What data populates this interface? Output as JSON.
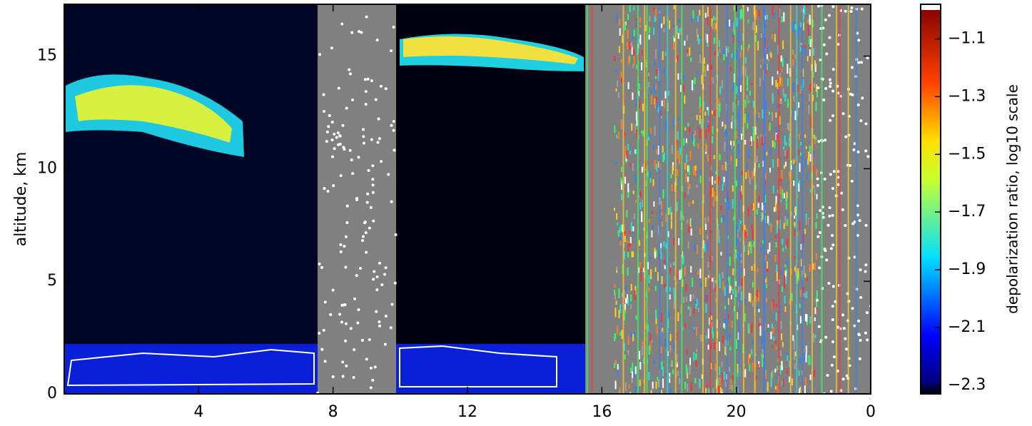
{
  "chart_data": {
    "type": "heatmap",
    "ylabel": "altitude, km",
    "colorbar_label": "depolarization ratio, log10 scale",
    "xlim": [
      0,
      24
    ],
    "xticks": [
      4,
      8,
      12,
      16,
      20,
      {
        "value": 24,
        "label": "0"
      }
    ],
    "ylim": [
      0,
      17.3
    ],
    "yticks": [
      0,
      5,
      10,
      15
    ],
    "clim": [
      -2.33,
      -0.98
    ],
    "cticks": [
      {
        "value": -1.1,
        "label": "−1.1"
      },
      {
        "value": -1.3,
        "label": "−1.3"
      },
      {
        "value": -1.5,
        "label": "−1.5"
      },
      {
        "value": -1.7,
        "label": "−1.7"
      },
      {
        "value": -1.9,
        "label": "−1.9"
      },
      {
        "value": -2.1,
        "label": "−2.1"
      },
      {
        "value": -2.3,
        "label": "−2.3"
      }
    ],
    "colormap": "jet"
  }
}
